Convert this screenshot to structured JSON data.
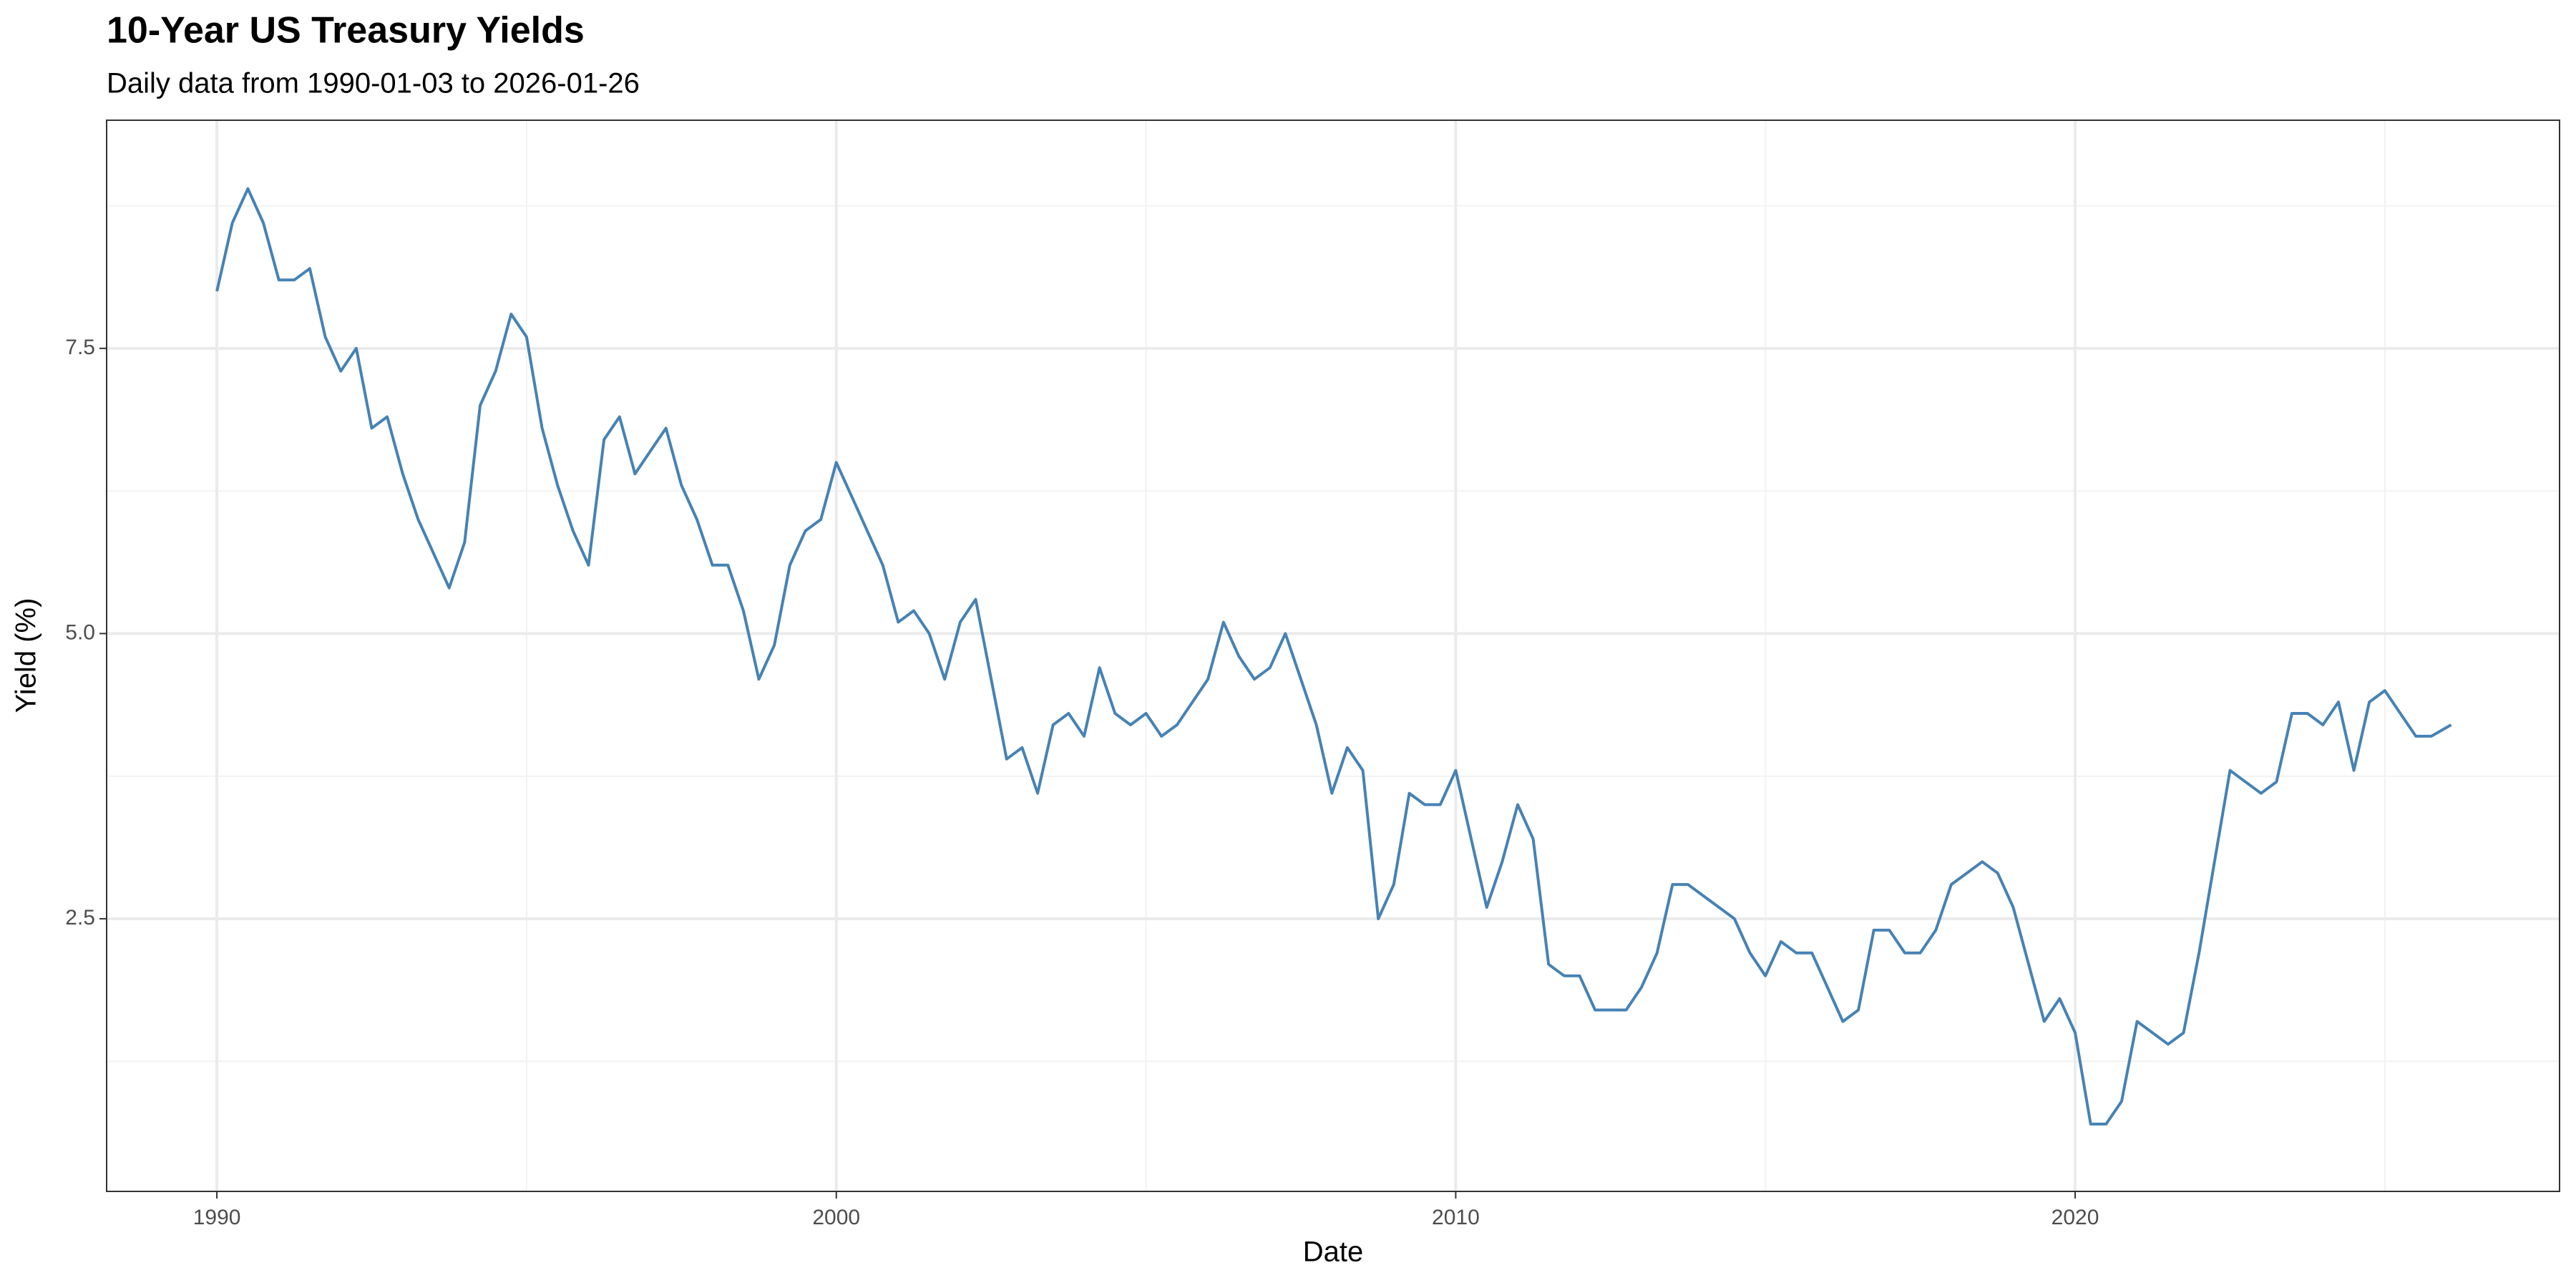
{
  "chart_data": {
    "type": "line",
    "title": "10-Year US Treasury Yields",
    "subtitle": "Daily data from 1990-01-03 to 2026-01-26",
    "x_label": "Date",
    "y_label": "Yield (%)",
    "color": "#4682b4",
    "grid": true,
    "xlim": [
      1988.22,
      2027.82
    ],
    "xticks": [
      1990,
      2000,
      2010,
      2020
    ],
    "x_minor_grid": [
      1995,
      2005,
      2015,
      2025
    ],
    "ylim": [
      0.11,
      9.5
    ],
    "yticks": [
      2.5,
      {
        "value": 5,
        "label": "5.0"
      },
      7.5
    ],
    "y_minor_grid": [
      1.25,
      3.75,
      6.25,
      8.75
    ],
    "x": [
      1990,
      1990.25,
      1990.5,
      1990.75,
      1991,
      1991.25,
      1991.5,
      1991.75,
      1992,
      1992.25,
      1992.5,
      1992.75,
      1993,
      1993.25,
      1993.5,
      1993.75,
      1994,
      1994.25,
      1994.5,
      1994.75,
      1995,
      1995.25,
      1995.5,
      1995.75,
      1996,
      1996.25,
      1996.5,
      1996.75,
      1997,
      1997.25,
      1997.5,
      1997.75,
      1998,
      1998.25,
      1998.5,
      1998.75,
      1999,
      1999.25,
      1999.5,
      1999.75,
      2000,
      2000.25,
      2000.5,
      2000.75,
      2001,
      2001.25,
      2001.5,
      2001.75,
      2002,
      2002.25,
      2002.5,
      2002.75,
      2003,
      2003.25,
      2003.5,
      2003.75,
      2004,
      2004.25,
      2004.5,
      2004.75,
      2005,
      2005.25,
      2005.5,
      2005.75,
      2006,
      2006.25,
      2006.5,
      2006.75,
      2007,
      2007.25,
      2007.5,
      2007.75,
      2008,
      2008.25,
      2008.5,
      2008.75,
      2009,
      2009.25,
      2009.5,
      2009.75,
      2010,
      2010.25,
      2010.5,
      2010.75,
      2011,
      2011.25,
      2011.5,
      2011.75,
      2012,
      2012.25,
      2012.5,
      2012.75,
      2013,
      2013.25,
      2013.5,
      2013.75,
      2014,
      2014.25,
      2014.5,
      2014.75,
      2015,
      2015.25,
      2015.5,
      2015.75,
      2016,
      2016.25,
      2016.5,
      2016.75,
      2017,
      2017.25,
      2017.5,
      2017.75,
      2018,
      2018.25,
      2018.5,
      2018.75,
      2019,
      2019.25,
      2019.5,
      2019.75,
      2020,
      2020.25,
      2020.5,
      2020.75,
      2021,
      2021.25,
      2021.5,
      2021.75,
      2022,
      2022.25,
      2022.5,
      2022.75,
      2023,
      2023.25,
      2023.5,
      2023.75,
      2024,
      2024.25,
      2024.5,
      2024.75,
      2025,
      2025.25,
      2025.5,
      2025.75,
      2026.07
    ],
    "values": [
      8.0,
      8.6,
      8.9,
      8.6,
      8.1,
      8.1,
      8.2,
      7.6,
      7.3,
      7.5,
      6.8,
      6.9,
      6.4,
      6.0,
      5.7,
      5.4,
      5.8,
      7.0,
      7.3,
      7.8,
      7.6,
      6.8,
      6.3,
      5.9,
      5.6,
      6.7,
      6.9,
      6.4,
      6.6,
      6.8,
      6.3,
      6.0,
      5.6,
      5.6,
      5.2,
      4.6,
      4.9,
      5.6,
      5.9,
      6.0,
      6.5,
      6.2,
      5.9,
      5.6,
      5.1,
      5.2,
      5.0,
      4.6,
      5.1,
      5.3,
      4.6,
      3.9,
      4.0,
      3.6,
      4.2,
      4.3,
      4.1,
      4.7,
      4.3,
      4.2,
      4.3,
      4.1,
      4.2,
      4.4,
      4.6,
      5.1,
      4.8,
      4.6,
      4.7,
      5.0,
      4.6,
      4.2,
      3.6,
      4.0,
      3.8,
      2.5,
      2.8,
      3.6,
      3.5,
      3.5,
      3.8,
      3.2,
      2.6,
      3.0,
      3.5,
      3.2,
      2.1,
      2.0,
      2.0,
      1.7,
      1.7,
      1.7,
      1.9,
      2.2,
      2.8,
      2.8,
      2.7,
      2.6,
      2.5,
      2.2,
      2.0,
      2.3,
      2.2,
      2.2,
      1.9,
      1.6,
      1.7,
      2.4,
      2.4,
      2.2,
      2.2,
      2.4,
      2.8,
      2.9,
      3.0,
      2.9,
      2.6,
      2.1,
      1.6,
      1.8,
      1.5,
      0.7,
      0.7,
      0.9,
      1.6,
      1.5,
      1.4,
      1.5,
      2.2,
      3.0,
      3.8,
      3.7,
      3.6,
      3.7,
      4.3,
      4.3,
      4.2,
      4.4,
      3.8,
      4.4,
      4.5,
      4.3,
      4.1,
      4.1,
      4.2
    ]
  }
}
